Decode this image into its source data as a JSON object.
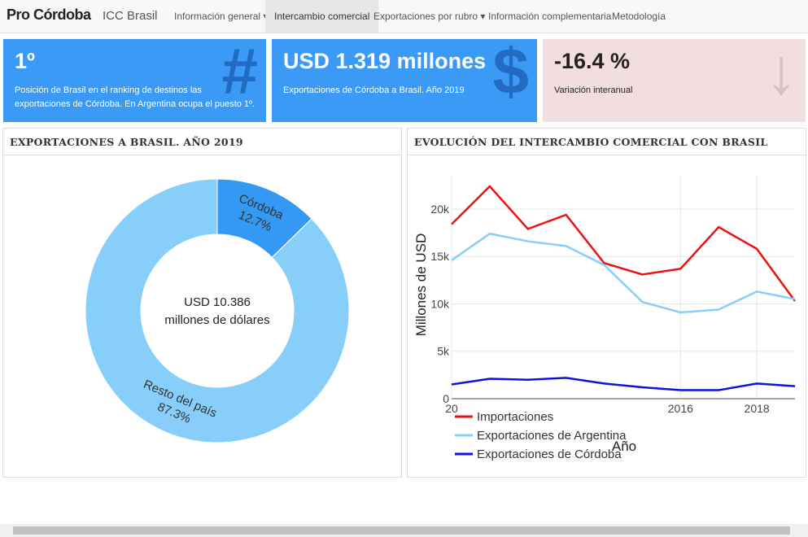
{
  "navbar": {
    "brand": "Pro Córdoba",
    "site": "ICC Brasil",
    "items": [
      "Información general",
      "Intercambio comercial",
      "Exportaciones por rubro",
      "Información complementaria",
      "Metodología"
    ]
  },
  "boxes": [
    {
      "value": "1º",
      "text": "Posición de Brasil en el ranking de destinos las exportaciones de Córdoba. En Argentina ocupa el puesto 1º.",
      "icon": "#"
    },
    {
      "value": "USD 1.319 millones",
      "text": "Exportaciones de Córdoba a Brasil. Año 2019",
      "icon": "$"
    },
    {
      "value": "-16.4 %",
      "text": "Variación interanual",
      "icon": "↓"
    }
  ],
  "chart_data": [
    {
      "type": "donut",
      "title": "EXPORTACIONES A BRASIL. AÑO 2019",
      "categories": [
        "Córdoba",
        "Resto del país"
      ],
      "values": [
        12.7,
        87.3
      ],
      "value_labels": [
        "12.7%",
        "87.3%"
      ],
      "colors": [
        "#3399f3",
        "#87cefa"
      ],
      "center_text": [
        "USD 10.386",
        "millones de dólares"
      ]
    },
    {
      "type": "line",
      "title": "EVOLUCIÓN DEL INTERCAMBIO COMERCIAL CON BRASIL",
      "x": [
        2010,
        2011,
        2012,
        2013,
        2014,
        2015,
        2016,
        2017,
        2018,
        2019
      ],
      "series": [
        {
          "name": "Importaciones",
          "color": "#ee1111",
          "values": [
            18400,
            22400,
            17900,
            19400,
            14300,
            13100,
            13700,
            18100,
            15800,
            10300
          ]
        },
        {
          "name": "Exportaciones de Argentina",
          "color": "#87cefa",
          "values": [
            14600,
            17400,
            16600,
            16100,
            14100,
            10200,
            9100,
            9400,
            11300,
            10500
          ]
        },
        {
          "name": "Exportaciones de Córdoba",
          "color": "#1111dd",
          "values": [
            1500,
            2100,
            2000,
            2200,
            1600,
            1200,
            900,
            900,
            1600,
            1319
          ]
        }
      ],
      "xlim": [
        2010,
        2019
      ],
      "xticks": [
        {
          "value": 2010,
          "label": "20"
        },
        2016,
        2018
      ],
      "ylim": [
        0,
        23600
      ],
      "yticks": [
        0,
        {
          "value": 5000,
          "label": "5k"
        },
        {
          "value": 10000,
          "label": "10k"
        },
        {
          "value": 15000,
          "label": "15k"
        },
        {
          "value": 20000,
          "label": "20k"
        }
      ],
      "xlabel": "Año",
      "ylabel": "Millones de USD",
      "grid": true,
      "legend": "bottom-left"
    }
  ]
}
